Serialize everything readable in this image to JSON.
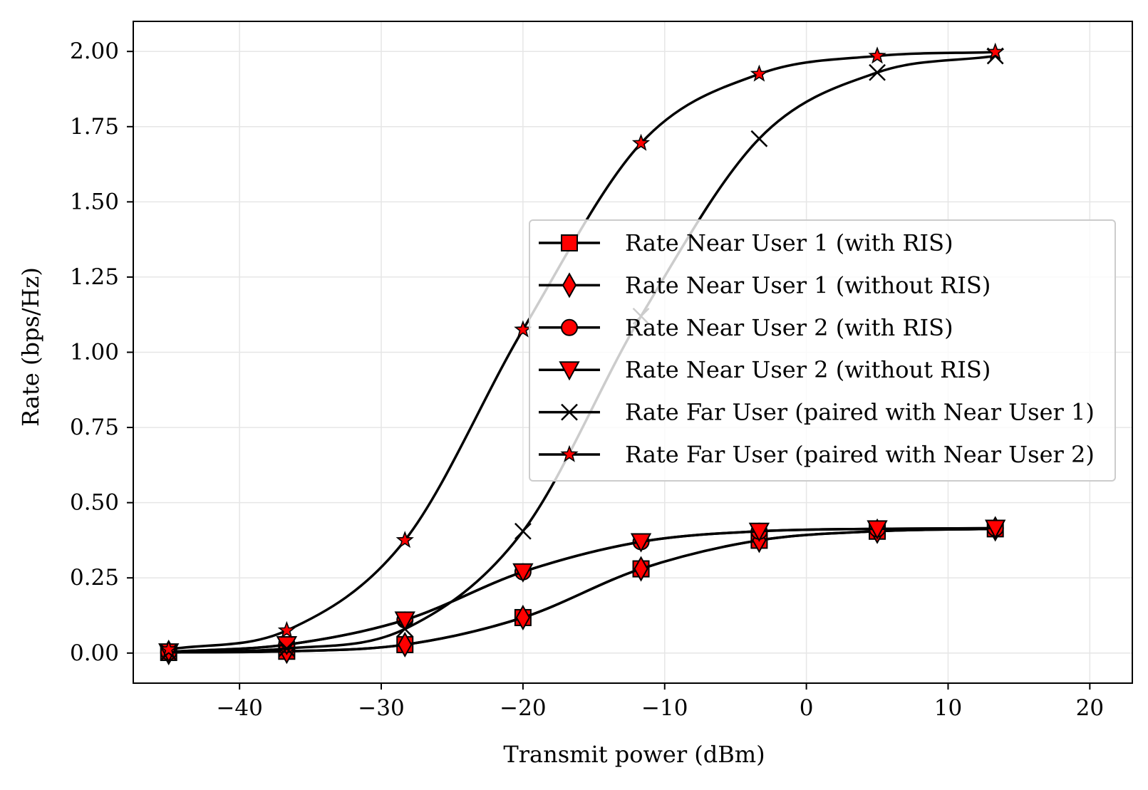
{
  "chart_data": {
    "type": "line",
    "title": "",
    "xlabel": "Transmit power (dBm)",
    "ylabel": "Rate (bps/Hz)",
    "xlim": [
      -47.5,
      23
    ],
    "ylim": [
      -0.1,
      2.1
    ],
    "grid": true,
    "legend_position": "center-right",
    "x_ticks": [
      -40,
      -30,
      -20,
      -10,
      0,
      10,
      20
    ],
    "x_tick_labels": [
      "−40",
      "−30",
      "−20",
      "−10",
      "0",
      "10",
      "20"
    ],
    "y_ticks": [
      0.0,
      0.25,
      0.5,
      0.75,
      1.0,
      1.25,
      1.5,
      1.75,
      2.0
    ],
    "y_tick_labels": [
      "0.00",
      "0.25",
      "0.50",
      "0.75",
      "1.00",
      "1.25",
      "1.50",
      "1.75",
      "2.00"
    ],
    "line_color": "#000000",
    "marker_fill": "#ff0000",
    "x": [
      -45,
      -36.67,
      -28.33,
      -20,
      -11.67,
      -3.33,
      5,
      13.33
    ],
    "series": [
      {
        "name": "Rate Near User 1 (with RIS)",
        "marker": "square",
        "values": [
          0.002,
          0.006,
          0.028,
          0.118,
          0.28,
          0.375,
          0.405,
          0.413
        ]
      },
      {
        "name": "Rate Near User 1 (without RIS)",
        "marker": "diamond",
        "values": [
          0.002,
          0.006,
          0.028,
          0.118,
          0.28,
          0.375,
          0.405,
          0.413
        ]
      },
      {
        "name": "Rate Near User 2 (with RIS)",
        "marker": "circle",
        "values": [
          0.004,
          0.028,
          0.11,
          0.27,
          0.37,
          0.405,
          0.413,
          0.415
        ]
      },
      {
        "name": "Rate Near User 2 (without RIS)",
        "marker": "triangle-down",
        "values": [
          0.004,
          0.028,
          0.11,
          0.27,
          0.37,
          0.405,
          0.413,
          0.415
        ]
      },
      {
        "name": "Rate Far User (paired with Near User 1)",
        "marker": "x",
        "values": [
          0.002,
          0.015,
          0.08,
          0.405,
          1.12,
          1.71,
          1.93,
          1.985
        ]
      },
      {
        "name": "Rate Far User (paired with Near User 2)",
        "marker": "star",
        "values": [
          0.012,
          0.075,
          0.375,
          1.075,
          1.695,
          1.925,
          1.985,
          1.998
        ]
      }
    ]
  }
}
